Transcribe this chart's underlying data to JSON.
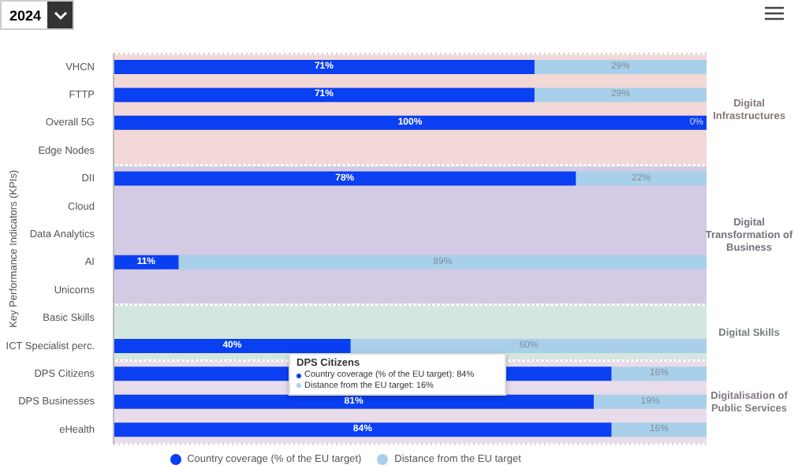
{
  "chart_data": {
    "type": "bar",
    "orientation": "horizontal",
    "stacked": true,
    "ylabel": "Key Performance Indicators (KPIs)",
    "categories": [
      "VHCN",
      "FTTP",
      "Overall 5G",
      "Edge Nodes",
      "DII",
      "Cloud",
      "Data Analytics",
      "AI",
      "Unicorns",
      "Basic Skills",
      "ICT Specialist perc.",
      "DPS Citizens",
      "DPS Businesses",
      "eHealth"
    ],
    "series": [
      {
        "name": "Country coverage (% of the EU target)",
        "color": "#0a3ff2",
        "values": [
          71,
          71,
          100,
          null,
          78,
          null,
          null,
          11,
          null,
          null,
          40,
          84,
          81,
          84
        ],
        "value_labels": [
          "71%",
          "71%",
          "100%",
          null,
          "78%",
          null,
          null,
          "11%",
          null,
          null,
          "40%",
          null,
          "81%",
          "84%"
        ]
      },
      {
        "name": "Distance from the EU target",
        "color": "#a9d0ea",
        "values": [
          29,
          29,
          0,
          null,
          22,
          null,
          null,
          89,
          null,
          null,
          60,
          16,
          19,
          16
        ],
        "value_labels": [
          "29%",
          "29%",
          "0%",
          null,
          "22%",
          null,
          null,
          "89%",
          null,
          null,
          "60%",
          "16%",
          "19%",
          "16%"
        ]
      }
    ],
    "xlim": [
      0,
      100
    ],
    "tick_labels": "y",
    "grid": "y",
    "legend": "bottom",
    "bands": [
      {
        "axis": "y",
        "from": "VHCN",
        "to": "Edge Nodes",
        "label": "Digital Infrastructures",
        "color": "#f2d8d6"
      },
      {
        "axis": "y",
        "from": "DII",
        "to": "Unicorns",
        "label": "Digital Transformation of Business",
        "color": "#d2cbe3"
      },
      {
        "axis": "y",
        "from": "Basic Skills",
        "to": "ICT Specialist perc.",
        "label": "Digital Skills",
        "color": "#d3e6df"
      },
      {
        "axis": "y",
        "from": "DPS Citizens",
        "to": "eHealth",
        "label": "Digitalisation of Public Services",
        "color": "#e8dcea"
      }
    ],
    "annotations": [
      "2024",
      "DPS Citizens",
      "Country coverage (% of the EU target): 84%",
      "Distance from the EU target: 16%"
    ]
  }
}
